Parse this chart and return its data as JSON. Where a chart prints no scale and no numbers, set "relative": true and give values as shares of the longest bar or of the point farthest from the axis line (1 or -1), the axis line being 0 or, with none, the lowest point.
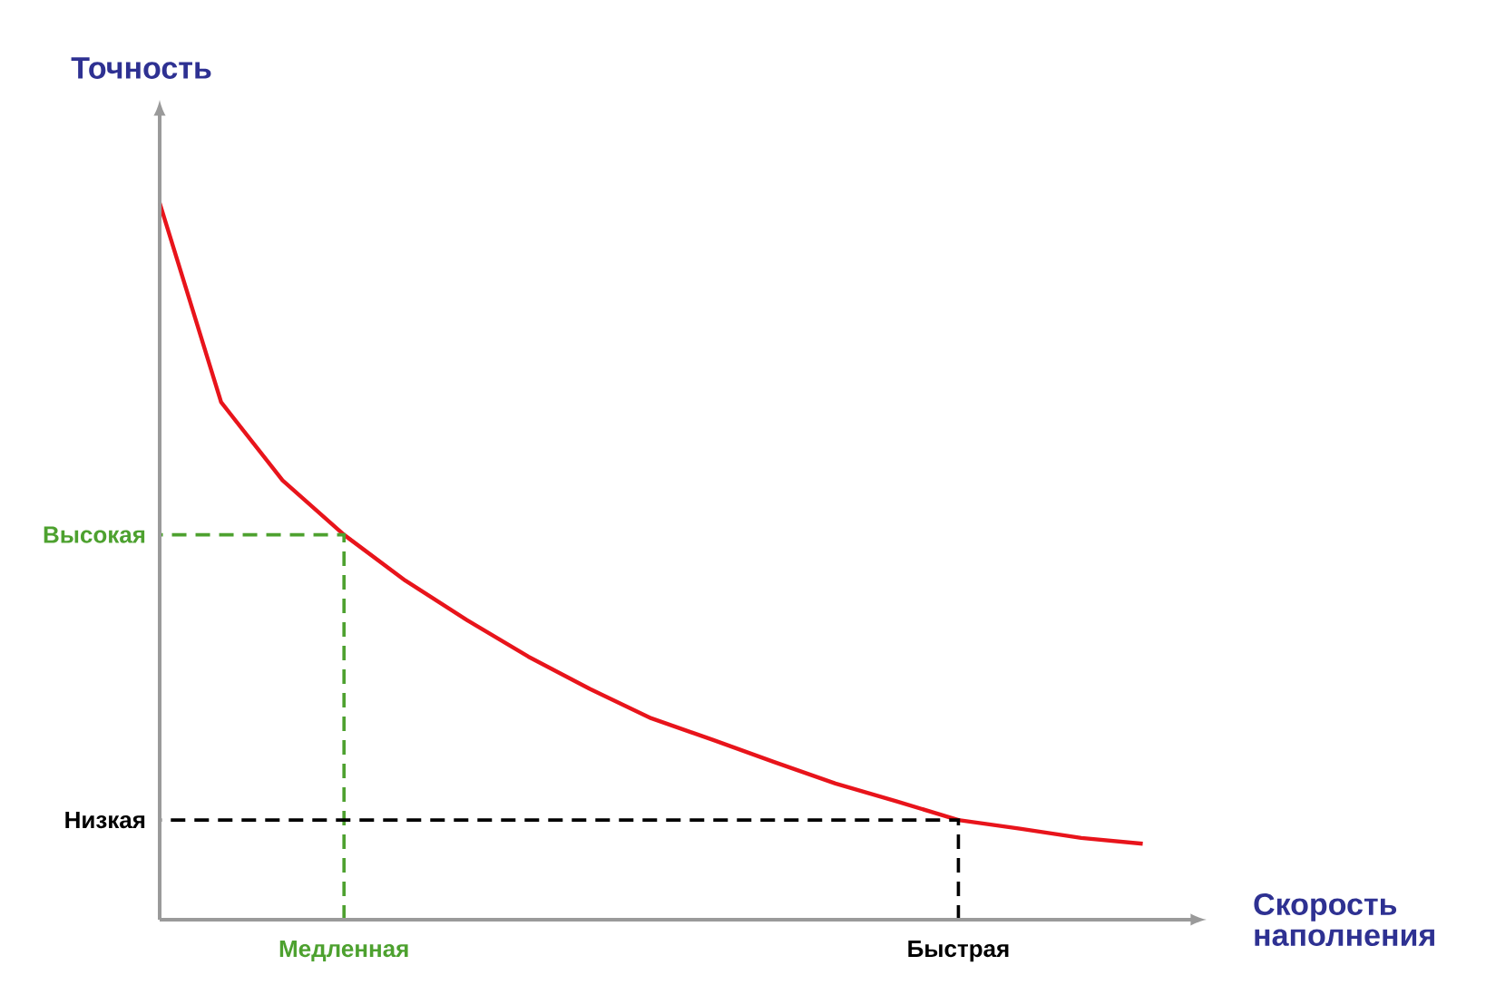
{
  "chart_data": {
    "type": "line",
    "relative": true,
    "xlabel": "Скорость наполнения",
    "ylabel": "Точность",
    "categories": [
      null,
      null,
      null,
      "Медленная",
      null,
      null,
      null,
      null,
      null,
      null,
      null,
      null,
      null,
      "Быстрая",
      null,
      null,
      null
    ],
    "values": [
      1,
      0.722,
      0.613,
      0.537,
      0.473,
      0.418,
      0.367,
      0.322,
      0.281,
      0.251,
      0.22,
      0.19,
      0.165,
      0.139,
      0.127,
      0.114,
      0.106
    ],
    "color": "#e8141b",
    "annotations": [
      "Высокая",
      "Низкая"
    ],
    "grid": false,
    "marker": "none",
    "line_style": "solid"
  }
}
